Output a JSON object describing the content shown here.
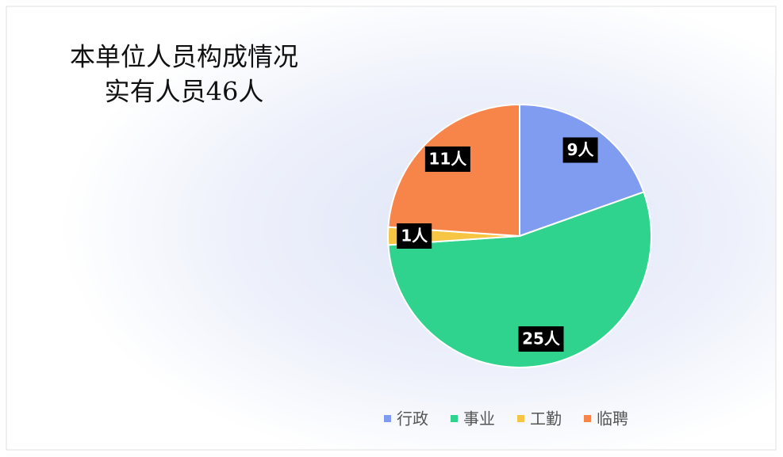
{
  "chart_data": {
    "type": "pie",
    "title": "本单位人员构成情况",
    "subtitle": "实有人员46人",
    "categories": [
      "行政",
      "事业",
      "工勤",
      "临聘"
    ],
    "values": [
      9,
      25,
      1,
      11
    ],
    "value_labels": [
      "9人",
      "25人",
      "1人",
      "11人"
    ],
    "colors": [
      "#7f9cf0",
      "#2fd38d",
      "#f6c544",
      "#f7854a"
    ],
    "legend": "bottom"
  }
}
